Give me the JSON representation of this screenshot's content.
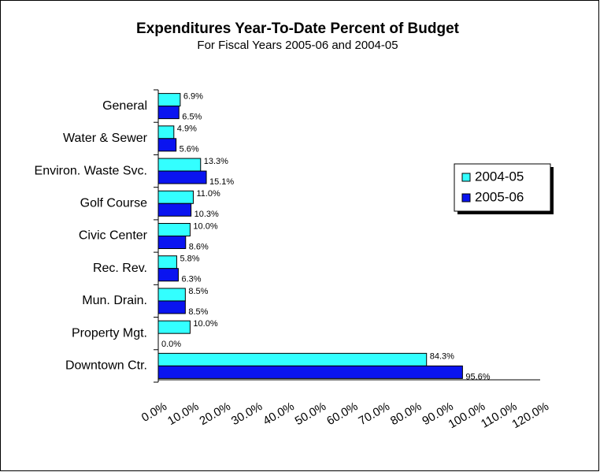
{
  "chart_data": {
    "type": "hbar",
    "title": "Expenditures Year-To-Date Percent of Budget",
    "subtitle": "For Fiscal Years 2005-06 and 2004-05",
    "categories": [
      "General",
      "Water & Sewer",
      "Environ. Waste Svc.",
      "Golf Course",
      "Civic Center",
      "Rec. Rev.",
      "Mun. Drain.",
      "Property Mgt.",
      "Downtown Ctr."
    ],
    "series": [
      {
        "name": "2004-05",
        "color": "#33ffff",
        "values": [
          6.9,
          4.9,
          13.3,
          11.0,
          10.0,
          5.8,
          8.5,
          10.0,
          84.3
        ],
        "value_labels": [
          "6.9%",
          "4.9%",
          "13.3%",
          "11.0%",
          "10.0%",
          "5.8%",
          "8.5%",
          "10.0%",
          "84.3%"
        ]
      },
      {
        "name": "2005-06",
        "color": "#0a14f0",
        "values": [
          6.5,
          5.6,
          15.1,
          10.3,
          8.6,
          6.3,
          8.5,
          0.0,
          95.6
        ],
        "value_labels": [
          "6.5%",
          "5.6%",
          "15.1%",
          "10.3%",
          "8.6%",
          "6.3%",
          "8.5%",
          "0.0%",
          "95.6%"
        ]
      }
    ],
    "xlim": [
      0,
      120
    ],
    "xticks": [
      {
        "value": 0,
        "label": "0.0%"
      },
      {
        "value": 10,
        "label": "10.0%"
      },
      {
        "value": 20,
        "label": "20.0%"
      },
      {
        "value": 30,
        "label": "30.0%"
      },
      {
        "value": 40,
        "label": "40.0%"
      },
      {
        "value": 50,
        "label": "50.0%"
      },
      {
        "value": 60,
        "label": "60.0%"
      },
      {
        "value": 70,
        "label": "70.0%"
      },
      {
        "value": 80,
        "label": "80.0%"
      },
      {
        "value": 90,
        "label": "90.0%"
      },
      {
        "value": 100,
        "label": "100.0%"
      },
      {
        "value": 110,
        "label": "110.0%"
      },
      {
        "value": 120,
        "label": "120.0%"
      }
    ],
    "grid": false,
    "legend": "right"
  }
}
